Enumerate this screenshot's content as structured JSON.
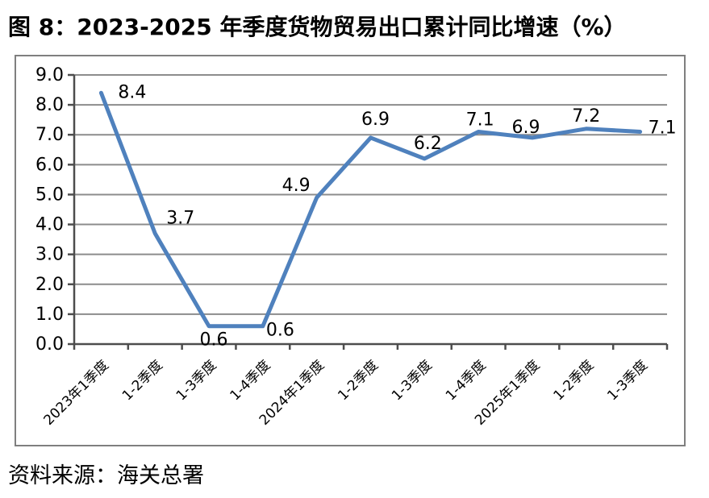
{
  "page": {
    "title": "图 8：2023-2025 年季度货物贸易出口累计同比增速（%）",
    "source": "资料来源：海关总署"
  },
  "chart_data": {
    "type": "line",
    "title": "图 8：2023-2025 年季度货物贸易出口累计同比增速（%）",
    "categories": [
      "2023年1季度",
      "1-2季度",
      "1-3季度",
      "1-4季度",
      "2024年1季度",
      "1-2季度",
      "1-3季度",
      "1-4季度",
      "2025年1季度",
      "1-2季度",
      "1-3季度"
    ],
    "values": [
      8.4,
      3.7,
      0.6,
      0.6,
      4.9,
      6.9,
      6.2,
      7.1,
      6.9,
      7.2,
      7.1
    ],
    "data_labels": [
      "8.4",
      "3.7",
      "0.6",
      "0.6",
      "4.9",
      "6.9",
      "6.2",
      "7.1",
      "6.9",
      "7.2",
      "7.1"
    ],
    "xlabel": "",
    "ylabel": "",
    "ylim": [
      0,
      9
    ],
    "ytick_step": 1,
    "ytick_labels": [
      "0.0",
      "1.0",
      "2.0",
      "3.0",
      "4.0",
      "5.0",
      "6.0",
      "7.0",
      "8.0",
      "9.0"
    ],
    "grid": true,
    "legend": false,
    "line_color": "#4F81BD",
    "gridline_color": "#8C8C8C",
    "axis_color": "#4D4D4D",
    "border_color": "#7F7F7F",
    "label_color": "#000000"
  }
}
